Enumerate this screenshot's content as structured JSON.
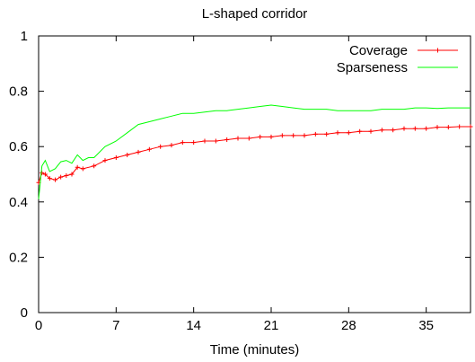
{
  "chart_data": {
    "type": "line",
    "title": "L-shaped corridor",
    "xlabel": "Time (minutes)",
    "ylabel": "",
    "xlim": [
      0,
      39
    ],
    "ylim": [
      0,
      1
    ],
    "x_ticks": [
      0,
      7,
      14,
      21,
      28,
      35
    ],
    "y_ticks": [
      0,
      0.2,
      0.4,
      0.6,
      0.8,
      1
    ],
    "y_tick_labels": [
      "0",
      "0.2",
      "0.4",
      "0.6",
      "0.8",
      "1"
    ],
    "grid": false,
    "legend_position": "top-right",
    "series": [
      {
        "name": "Coverage",
        "color": "#ff0000",
        "marker": "plus",
        "x": [
          0,
          0.3,
          0.6,
          1.0,
          1.5,
          2.0,
          2.5,
          3.0,
          3.5,
          4.0,
          5.0,
          6.0,
          7.0,
          8.0,
          9.0,
          10.0,
          11.0,
          12.0,
          13.0,
          14.0,
          15.0,
          16.0,
          17.0,
          18.0,
          19.0,
          20.0,
          21.0,
          22.0,
          23.0,
          24.0,
          25.0,
          26.0,
          27.0,
          28.0,
          29.0,
          30.0,
          31.0,
          32.0,
          33.0,
          34.0,
          35.0,
          36.0,
          37.0,
          38.0,
          39.0
        ],
        "y": [
          0.47,
          0.505,
          0.5,
          0.485,
          0.48,
          0.49,
          0.495,
          0.5,
          0.525,
          0.52,
          0.53,
          0.55,
          0.56,
          0.57,
          0.58,
          0.59,
          0.6,
          0.605,
          0.615,
          0.615,
          0.62,
          0.62,
          0.625,
          0.63,
          0.63,
          0.635,
          0.635,
          0.64,
          0.64,
          0.64,
          0.645,
          0.645,
          0.65,
          0.65,
          0.655,
          0.655,
          0.66,
          0.66,
          0.665,
          0.665,
          0.665,
          0.67,
          0.67,
          0.672,
          0.672
        ]
      },
      {
        "name": "Sparseness",
        "color": "#00ff00",
        "marker": "none",
        "x": [
          0,
          0.3,
          0.6,
          1.0,
          1.5,
          2.0,
          2.5,
          3.0,
          3.5,
          4.0,
          4.5,
          5.0,
          6.0,
          7.0,
          8.0,
          9.0,
          10.0,
          11.0,
          12.0,
          13.0,
          14.0,
          15.0,
          16.0,
          17.0,
          18.0,
          19.0,
          20.0,
          21.0,
          22.0,
          23.0,
          24.0,
          25.0,
          26.0,
          27.0,
          28.0,
          29.0,
          30.0,
          31.0,
          32.0,
          33.0,
          34.0,
          35.0,
          36.0,
          37.0,
          38.0,
          39.0
        ],
        "y": [
          0.41,
          0.53,
          0.55,
          0.51,
          0.52,
          0.545,
          0.55,
          0.54,
          0.57,
          0.55,
          0.56,
          0.56,
          0.6,
          0.62,
          0.65,
          0.68,
          0.69,
          0.7,
          0.71,
          0.72,
          0.72,
          0.725,
          0.73,
          0.73,
          0.735,
          0.74,
          0.745,
          0.75,
          0.745,
          0.74,
          0.735,
          0.735,
          0.735,
          0.73,
          0.73,
          0.73,
          0.73,
          0.735,
          0.735,
          0.735,
          0.74,
          0.74,
          0.738,
          0.74,
          0.74,
          0.74
        ]
      }
    ]
  }
}
